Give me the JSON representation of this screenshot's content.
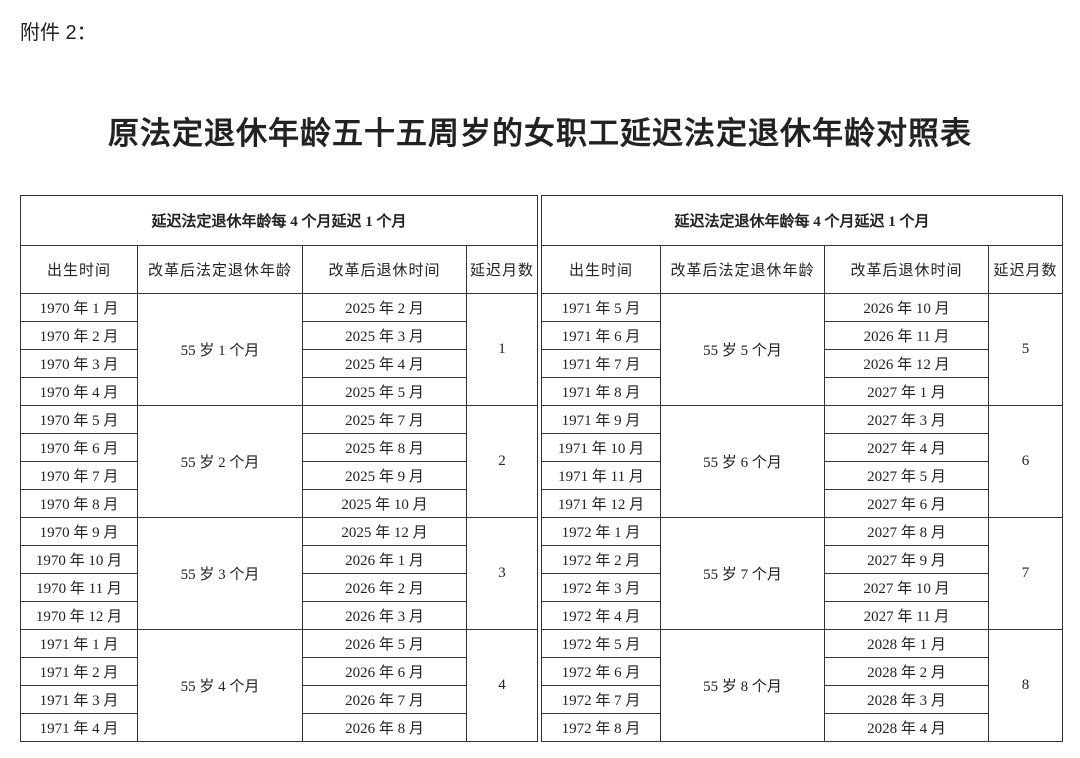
{
  "attachment": "附件 2：",
  "title": "原法定退休年龄五十五周岁的女职工延迟法定退休年龄对照表",
  "tables": [
    {
      "caption": "延迟法定退休年龄每 4 个月延迟 1 个月",
      "columns": [
        "出生时间",
        "改革后法定退休年龄",
        "改革后退休时间",
        "延迟月数"
      ],
      "groups": [
        {
          "births": [
            "1970 年 1 月",
            "1970 年 2 月",
            "1970 年 3 月",
            "1970 年 4 月"
          ],
          "age": "55 岁 1 个月",
          "retire": [
            "2025 年 2 月",
            "2025 年 3 月",
            "2025 年 4 月",
            "2025 年 5 月"
          ],
          "delay": 1
        },
        {
          "births": [
            "1970 年 5 月",
            "1970 年 6 月",
            "1970 年 7 月",
            "1970 年 8 月"
          ],
          "age": "55 岁 2 个月",
          "retire": [
            "2025 年 7 月",
            "2025 年 8 月",
            "2025 年 9 月",
            "2025 年 10 月"
          ],
          "delay": 2
        },
        {
          "births": [
            "1970 年 9 月",
            "1970 年 10 月",
            "1970 年 11 月",
            "1970 年 12 月"
          ],
          "age": "55 岁 3 个月",
          "retire": [
            "2025 年 12 月",
            "2026 年 1 月",
            "2026 年 2 月",
            "2026 年 3 月"
          ],
          "delay": 3
        },
        {
          "births": [
            "1971 年 1 月",
            "1971 年 2 月",
            "1971 年 3 月",
            "1971 年 4 月"
          ],
          "age": "55 岁 4 个月",
          "retire": [
            "2026 年 5 月",
            "2026 年 6 月",
            "2026 年 7 月",
            "2026 年 8 月"
          ],
          "delay": 4
        }
      ]
    },
    {
      "caption": "延迟法定退休年龄每 4 个月延迟 1 个月",
      "columns": [
        "出生时间",
        "改革后法定退休年龄",
        "改革后退休时间",
        "延迟月数"
      ],
      "groups": [
        {
          "births": [
            "1971 年 5 月",
            "1971 年 6 月",
            "1971 年 7 月",
            "1971 年 8 月"
          ],
          "age": "55 岁 5 个月",
          "retire": [
            "2026 年 10 月",
            "2026 年 11 月",
            "2026 年 12 月",
            "2027 年 1 月"
          ],
          "delay": 5
        },
        {
          "births": [
            "1971 年 9 月",
            "1971 年 10 月",
            "1971 年 11 月",
            "1971 年 12 月"
          ],
          "age": "55 岁 6 个月",
          "retire": [
            "2027 年 3 月",
            "2027 年 4 月",
            "2027 年 5 月",
            "2027 年 6 月"
          ],
          "delay": 6
        },
        {
          "births": [
            "1972 年 1 月",
            "1972 年 2 月",
            "1972 年 3 月",
            "1972 年 4 月"
          ],
          "age": "55 岁 7 个月",
          "retire": [
            "2027 年 8 月",
            "2027 年 9 月",
            "2027 年 10 月",
            "2027 年 11 月"
          ],
          "delay": 7
        },
        {
          "births": [
            "1972 年 5 月",
            "1972 年 6 月",
            "1972 年 7 月",
            "1972 年 8 月"
          ],
          "age": "55 岁 8 个月",
          "retire": [
            "2028 年 1 月",
            "2028 年 2 月",
            "2028 年 3 月",
            "2028 年 4 月"
          ],
          "delay": 8
        }
      ]
    }
  ]
}
